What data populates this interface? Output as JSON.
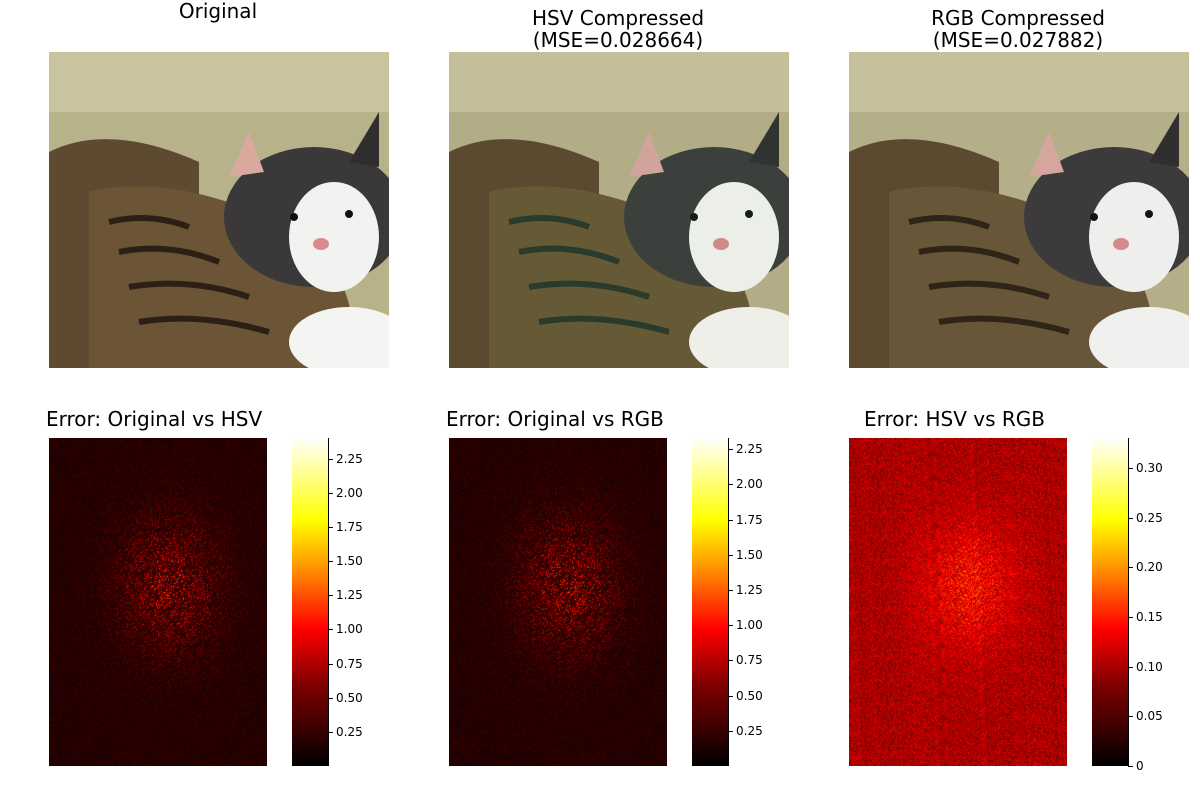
{
  "chart_data": [
    {
      "type": "image",
      "title": "Original",
      "content": "photo of two kittens cuddling (grey-white kitten hugging tabby kitten)"
    },
    {
      "type": "image",
      "title": "HSV Compressed\n(MSE=0.028664)",
      "title_line1": "HSV Compressed",
      "title_line2": "(MSE=0.028664)",
      "mse": 0.028664
    },
    {
      "type": "image",
      "title": "RGB Compressed\n(MSE=0.027882)",
      "title_line1": "RGB Compressed",
      "title_line2": "(MSE=0.027882)",
      "mse": 0.027882
    },
    {
      "type": "heatmap",
      "title": "Error: Original vs HSV",
      "colormap": "hot",
      "clim": [
        0,
        2.4
      ],
      "colorbar_ticks": [
        "2.25",
        "2.00",
        "1.75",
        "1.50",
        "1.25",
        "1.00",
        "0.75",
        "0.50",
        "0.25"
      ],
      "colorbar_tick_values": [
        2.25,
        2.0,
        1.75,
        1.5,
        1.25,
        1.0,
        0.75,
        0.5,
        0.25
      ]
    },
    {
      "type": "heatmap",
      "title": "Error: Original vs RGB",
      "colormap": "hot",
      "clim": [
        0,
        2.33
      ],
      "colorbar_ticks": [
        "2.25",
        "2.00",
        "1.75",
        "1.50",
        "1.25",
        "1.00",
        "0.75",
        "0.50",
        "0.25"
      ],
      "colorbar_tick_values": [
        2.25,
        2.0,
        1.75,
        1.5,
        1.25,
        1.0,
        0.75,
        0.5,
        0.25
      ]
    },
    {
      "type": "heatmap",
      "title": "Error: HSV vs RGB",
      "colormap": "hot",
      "clim": [
        0,
        0.33
      ],
      "colorbar_ticks": [
        "0.30",
        "0.25",
        "0.20",
        "0.15",
        "0.10",
        "0.05",
        "0"
      ],
      "colorbar_tick_values": [
        0.3,
        0.25,
        0.2,
        0.15,
        0.1,
        0.05,
        0
      ]
    }
  ],
  "colors": {
    "hot_colormap": [
      "#000000",
      "#800000",
      "#ff0000",
      "#ff8000",
      "#ffff00",
      "#ffffff"
    ]
  }
}
